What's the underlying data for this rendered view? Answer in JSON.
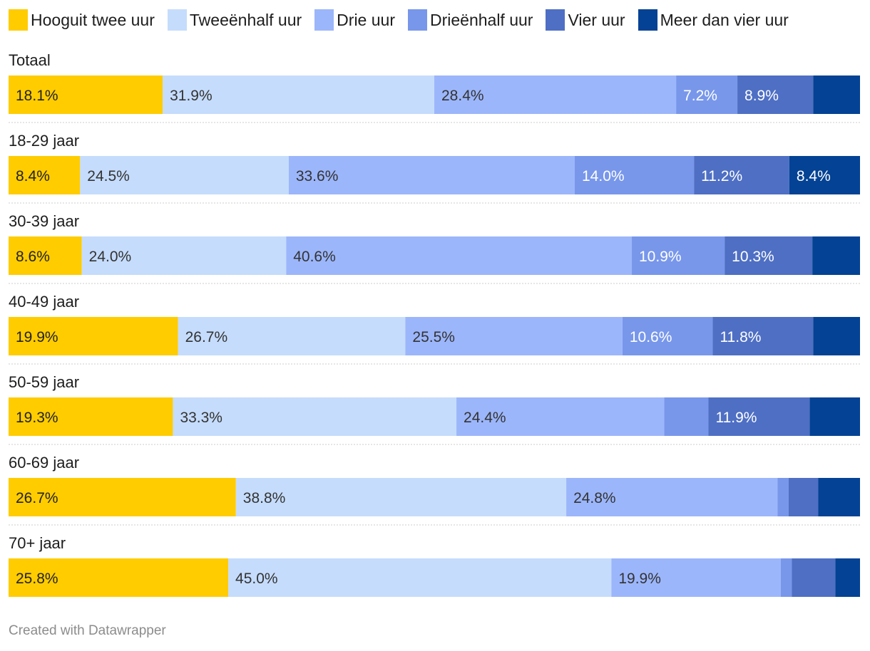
{
  "chart_data": {
    "type": "bar",
    "orientation": "horizontal",
    "stacked": true,
    "categories": [
      "Totaal",
      "18-29 jaar",
      "30-39 jaar",
      "40-49 jaar",
      "50-59 jaar",
      "60-69 jaar",
      "70+ jaar"
    ],
    "series": [
      {
        "name": "Hooguit twee uur",
        "color": "#ffcc00",
        "label_color": "#222222",
        "values": [
          18.1,
          8.4,
          8.6,
          19.9,
          19.3,
          26.7,
          25.8
        ]
      },
      {
        "name": "Tweeënhalf uur",
        "color": "#c5dcfc",
        "label_color": "#333333",
        "values": [
          31.9,
          24.5,
          24.0,
          26.7,
          33.3,
          38.8,
          45.0
        ]
      },
      {
        "name": "Drie uur",
        "color": "#9cb6fb",
        "label_color": "#333333",
        "values": [
          28.4,
          33.6,
          40.6,
          25.5,
          24.4,
          24.8,
          19.9
        ]
      },
      {
        "name": "Drieënhalf uur",
        "color": "#7897eb",
        "label_color": "#ffffff",
        "values": [
          7.2,
          14.0,
          10.9,
          10.6,
          5.2,
          1.3,
          1.3
        ]
      },
      {
        "name": "Vier uur",
        "color": "#4e6fc4",
        "label_color": "#ffffff",
        "values": [
          8.9,
          11.2,
          10.3,
          11.8,
          11.9,
          3.5,
          5.1
        ]
      },
      {
        "name": "Meer dan vier uur",
        "color": "#034294",
        "label_color": "#ffffff",
        "values": [
          5.4,
          8.4,
          5.5,
          5.5,
          5.8,
          4.9,
          2.7
        ]
      }
    ],
    "visible_labels": [
      [
        "18.1%",
        "31.9%",
        "28.4%",
        "7.2%",
        "8.9%",
        ""
      ],
      [
        "8.4%",
        "24.5%",
        "33.6%",
        "14.0%",
        "11.2%",
        "8.4%"
      ],
      [
        "8.6%",
        "24.0%",
        "40.6%",
        "10.9%",
        "10.3%",
        ""
      ],
      [
        "19.9%",
        "26.7%",
        "25.5%",
        "10.6%",
        "11.8%",
        ""
      ],
      [
        "19.3%",
        "33.3%",
        "24.4%",
        "",
        "11.9%",
        ""
      ],
      [
        "26.7%",
        "38.8%",
        "24.8%",
        "",
        "",
        ""
      ],
      [
        "25.8%",
        "45.0%",
        "19.9%",
        "",
        "",
        ""
      ]
    ],
    "xlim": [
      0,
      100
    ],
    "legend_position": "top"
  },
  "footer": {
    "credit": "Created with Datawrapper"
  }
}
